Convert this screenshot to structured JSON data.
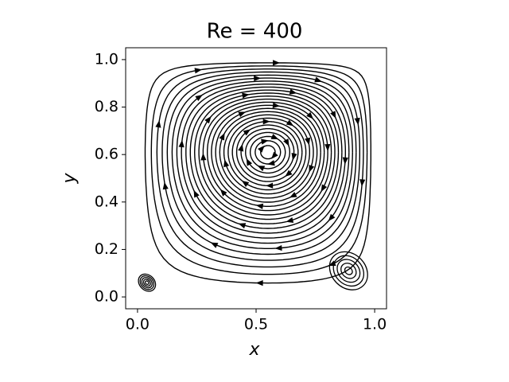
{
  "chart_data": {
    "type": "streamplot",
    "title": "Re = 400",
    "xlabel": "x",
    "ylabel": "y",
    "xlim": [
      -0.05,
      1.05
    ],
    "ylim": [
      -0.05,
      1.05
    ],
    "xticks": [
      {
        "value": 0,
        "label": "0.0"
      },
      {
        "value": 0.5,
        "label": "0.5"
      },
      {
        "value": 1,
        "label": "1.0"
      }
    ],
    "yticks": [
      {
        "value": 0,
        "label": "0.0"
      },
      {
        "value": 0.2,
        "label": "0.2"
      },
      {
        "value": 0.4,
        "label": "0.4"
      },
      {
        "value": 0.6,
        "label": "0.6"
      },
      {
        "value": 0.8,
        "label": "0.8"
      },
      {
        "value": 1,
        "label": "1.0"
      }
    ],
    "color": "#000000"
  }
}
